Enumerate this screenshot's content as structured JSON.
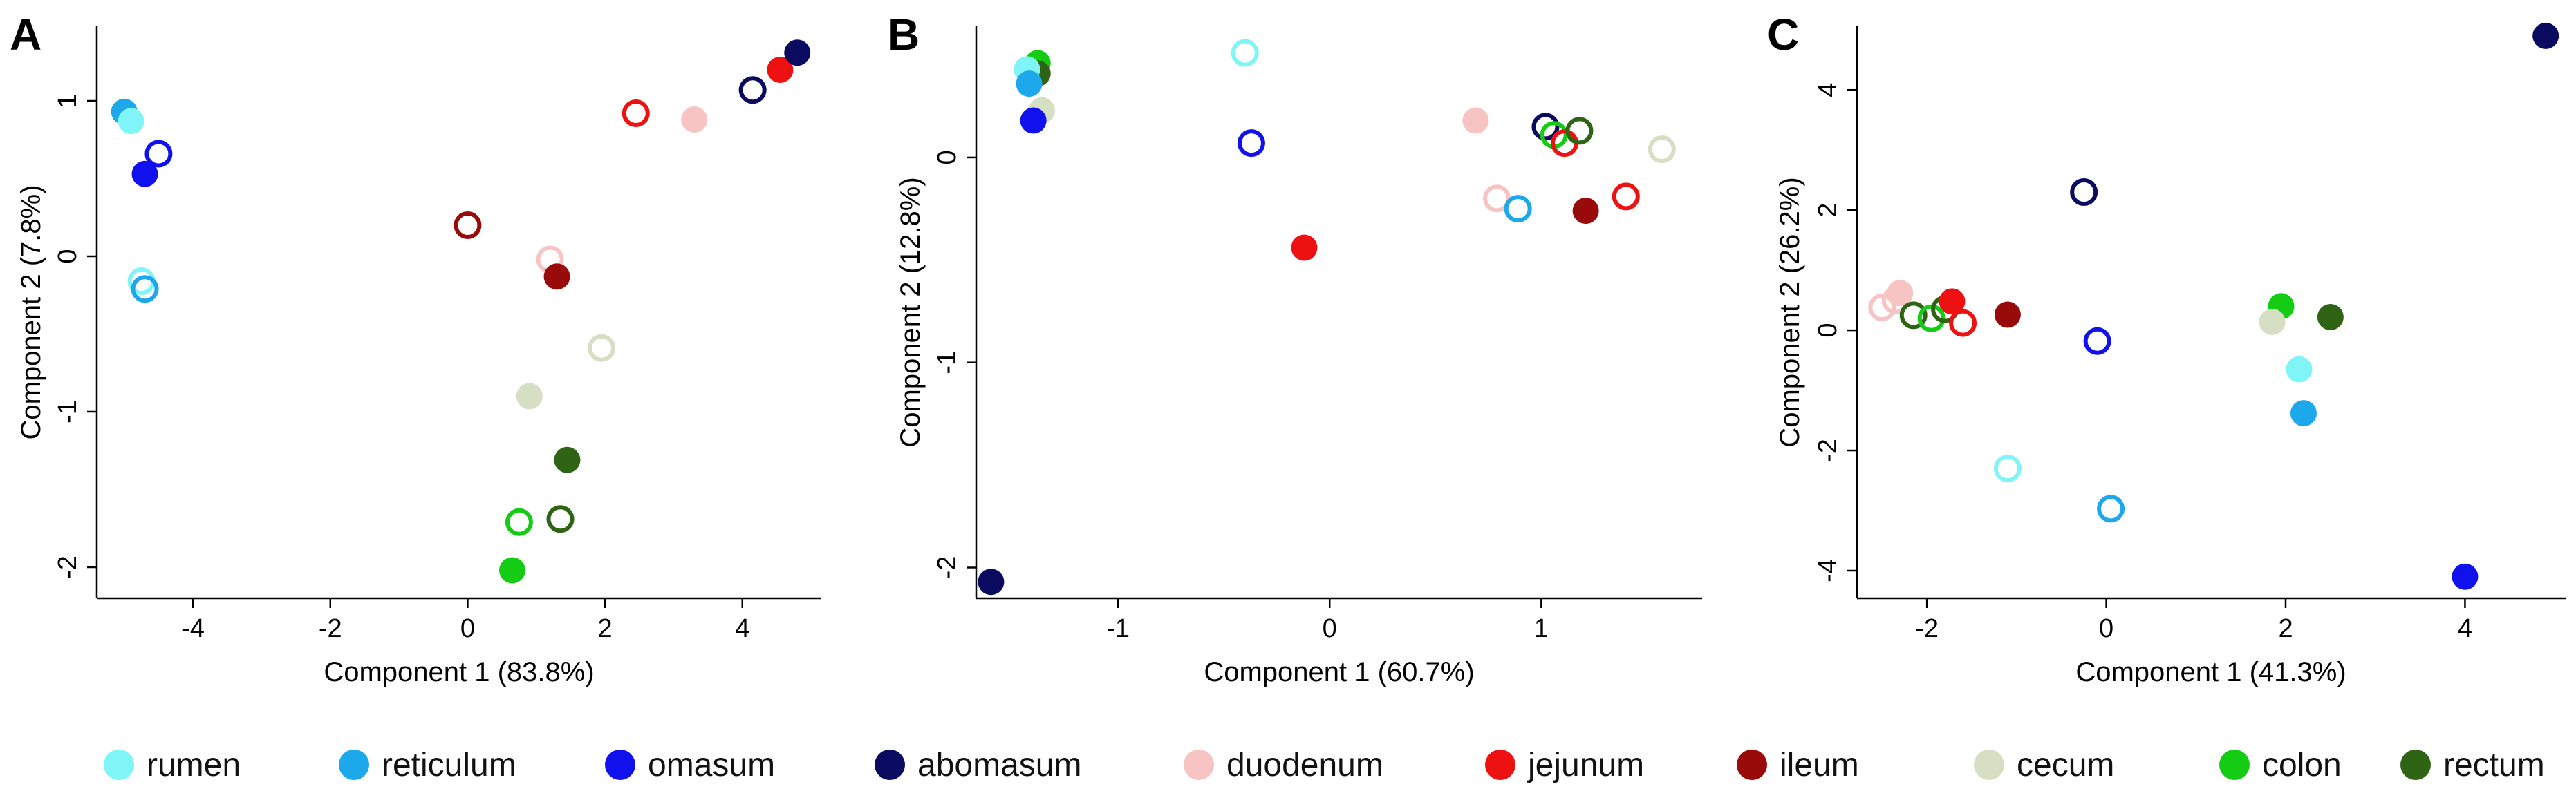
{
  "tissue_colors": {
    "rumen": "#7ff5f7",
    "reticulum": "#1ea8ec",
    "omasum": "#1111ee",
    "abomasum": "#0a0a60",
    "duodenum": "#f7c3c3",
    "jejunum": "#ee1111",
    "ileum": "#990b0b",
    "cecum": "#d6dec3",
    "colon": "#14cc14",
    "rectum": "#2e6414"
  },
  "legend": [
    {
      "key": "rumen",
      "label": "rumen"
    },
    {
      "key": "reticulum",
      "label": "reticulum"
    },
    {
      "key": "omasum",
      "label": "omasum"
    },
    {
      "key": "abomasum",
      "label": "abomasum"
    },
    {
      "key": "duodenum",
      "label": "duodenum"
    },
    {
      "key": "jejunum",
      "label": "jejunum"
    },
    {
      "key": "ileum",
      "label": "ileum"
    },
    {
      "key": "cecum",
      "label": "cecum"
    },
    {
      "key": "colon",
      "label": "colon"
    },
    {
      "key": "rectum",
      "label": "rectum"
    }
  ],
  "chart_data": [
    {
      "type": "scatter",
      "panel": "A",
      "xlabel": "Component 1 (83.8%)",
      "ylabel": "Component 2 (7.8%)",
      "xlim": [
        -5.4,
        5.15
      ],
      "ylim": [
        -2.2,
        1.48
      ],
      "xticks": [
        -4,
        -2,
        0,
        2,
        4
      ],
      "yticks": [
        -2,
        -1,
        0,
        1
      ],
      "points": [
        {
          "tissue": "reticulum",
          "filled": true,
          "x": -5.0,
          "y": 0.93
        },
        {
          "tissue": "rumen",
          "filled": true,
          "x": -4.9,
          "y": 0.87
        },
        {
          "tissue": "omasum",
          "filled": false,
          "x": -4.5,
          "y": 0.66
        },
        {
          "tissue": "omasum",
          "filled": true,
          "x": -4.7,
          "y": 0.53
        },
        {
          "tissue": "rumen",
          "filled": false,
          "x": -4.75,
          "y": -0.16
        },
        {
          "tissue": "reticulum",
          "filled": false,
          "x": -4.7,
          "y": -0.21
        },
        {
          "tissue": "ileum",
          "filled": false,
          "x": 0.0,
          "y": 0.2
        },
        {
          "tissue": "duodenum",
          "filled": false,
          "x": 1.2,
          "y": -0.02
        },
        {
          "tissue": "ileum",
          "filled": true,
          "x": 1.3,
          "y": -0.13
        },
        {
          "tissue": "cecum",
          "filled": false,
          "x": 1.95,
          "y": -0.59
        },
        {
          "tissue": "cecum",
          "filled": true,
          "x": 0.9,
          "y": -0.9
        },
        {
          "tissue": "rectum",
          "filled": true,
          "x": 1.45,
          "y": -1.31
        },
        {
          "tissue": "colon",
          "filled": false,
          "x": 0.75,
          "y": -1.71
        },
        {
          "tissue": "rectum",
          "filled": false,
          "x": 1.35,
          "y": -1.69
        },
        {
          "tissue": "colon",
          "filled": true,
          "x": 0.65,
          "y": -2.02
        },
        {
          "tissue": "jejunum",
          "filled": false,
          "x": 2.45,
          "y": 0.92
        },
        {
          "tissue": "duodenum",
          "filled": true,
          "x": 3.3,
          "y": 0.88
        },
        {
          "tissue": "abomasum",
          "filled": false,
          "x": 4.15,
          "y": 1.07
        },
        {
          "tissue": "jejunum",
          "filled": true,
          "x": 4.55,
          "y": 1.2
        },
        {
          "tissue": "abomasum",
          "filled": true,
          "x": 4.8,
          "y": 1.31
        }
      ]
    },
    {
      "type": "scatter",
      "panel": "B",
      "xlabel": "Component 1 (60.7%)",
      "ylabel": "Component 2 (12.8%)",
      "xlim": [
        -1.67,
        1.76
      ],
      "ylim": [
        -2.15,
        0.64
      ],
      "xticks": [
        -1,
        0,
        1
      ],
      "yticks": [
        -2,
        -1,
        0
      ],
      "points": [
        {
          "tissue": "colon",
          "filled": true,
          "x": -1.38,
          "y": 0.46
        },
        {
          "tissue": "rectum",
          "filled": true,
          "x": -1.38,
          "y": 0.41
        },
        {
          "tissue": "cecum",
          "filled": true,
          "x": -1.36,
          "y": 0.23
        },
        {
          "tissue": "rumen",
          "filled": true,
          "x": -1.43,
          "y": 0.43
        },
        {
          "tissue": "reticulum",
          "filled": true,
          "x": -1.42,
          "y": 0.36
        },
        {
          "tissue": "omasum",
          "filled": true,
          "x": -1.4,
          "y": 0.18
        },
        {
          "tissue": "rumen",
          "filled": false,
          "x": -0.4,
          "y": 0.51
        },
        {
          "tissue": "omasum",
          "filled": false,
          "x": -0.37,
          "y": 0.07
        },
        {
          "tissue": "jejunum",
          "filled": true,
          "x": -0.12,
          "y": -0.44
        },
        {
          "tissue": "abomasum",
          "filled": true,
          "x": -1.6,
          "y": -2.07
        },
        {
          "tissue": "duodenum",
          "filled": true,
          "x": 0.69,
          "y": 0.18
        },
        {
          "tissue": "duodenum",
          "filled": false,
          "x": 0.79,
          "y": -0.2
        },
        {
          "tissue": "reticulum",
          "filled": false,
          "x": 0.89,
          "y": -0.25
        },
        {
          "tissue": "abomasum",
          "filled": false,
          "x": 1.02,
          "y": 0.15
        },
        {
          "tissue": "colon",
          "filled": false,
          "x": 1.06,
          "y": 0.11
        },
        {
          "tissue": "jejunum",
          "filled": false,
          "x": 1.11,
          "y": 0.07
        },
        {
          "tissue": "rectum",
          "filled": false,
          "x": 1.18,
          "y": 0.13
        },
        {
          "tissue": "ileum",
          "filled": true,
          "x": 1.21,
          "y": -0.26
        },
        {
          "tissue": "jejunum",
          "filled": false,
          "x": 1.4,
          "y": -0.19
        },
        {
          "tissue": "cecum",
          "filled": false,
          "x": 1.57,
          "y": 0.04
        }
      ]
    },
    {
      "type": "scatter",
      "panel": "C",
      "xlabel": "Component 1 (41.3%)",
      "ylabel": "Component 2 (26.2%)",
      "xlim": [
        -2.78,
        5.13
      ],
      "ylim": [
        -4.46,
        5.06
      ],
      "xticks": [
        -2,
        0,
        2,
        4
      ],
      "yticks": [
        -4,
        -2,
        0,
        2,
        4
      ],
      "points": [
        {
          "tissue": "duodenum",
          "filled": false,
          "x": -2.5,
          "y": 0.38
        },
        {
          "tissue": "duodenum",
          "filled": false,
          "x": -2.35,
          "y": 0.5
        },
        {
          "tissue": "duodenum",
          "filled": true,
          "x": -2.3,
          "y": 0.62
        },
        {
          "tissue": "rectum",
          "filled": false,
          "x": -2.15,
          "y": 0.25
        },
        {
          "tissue": "colon",
          "filled": false,
          "x": -1.95,
          "y": 0.2
        },
        {
          "tissue": "rectum",
          "filled": false,
          "x": -1.8,
          "y": 0.35
        },
        {
          "tissue": "jejunum",
          "filled": true,
          "x": -1.72,
          "y": 0.48
        },
        {
          "tissue": "jejunum",
          "filled": false,
          "x": -1.6,
          "y": 0.12
        },
        {
          "tissue": "ileum",
          "filled": true,
          "x": -1.1,
          "y": 0.26
        },
        {
          "tissue": "abomasum",
          "filled": false,
          "x": -0.25,
          "y": 2.3
        },
        {
          "tissue": "omasum",
          "filled": false,
          "x": -0.1,
          "y": -0.18
        },
        {
          "tissue": "rumen",
          "filled": false,
          "x": -1.1,
          "y": -2.3
        },
        {
          "tissue": "reticulum",
          "filled": false,
          "x": 0.05,
          "y": -2.97
        },
        {
          "tissue": "colon",
          "filled": true,
          "x": 1.95,
          "y": 0.4
        },
        {
          "tissue": "cecum",
          "filled": true,
          "x": 1.85,
          "y": 0.14
        },
        {
          "tissue": "rectum",
          "filled": true,
          "x": 2.5,
          "y": 0.22
        },
        {
          "tissue": "rumen",
          "filled": true,
          "x": 2.15,
          "y": -0.65
        },
        {
          "tissue": "reticulum",
          "filled": true,
          "x": 2.2,
          "y": -1.38
        },
        {
          "tissue": "omasum",
          "filled": true,
          "x": 4.0,
          "y": -4.1
        },
        {
          "tissue": "abomasum",
          "filled": true,
          "x": 4.9,
          "y": 4.9
        }
      ]
    }
  ]
}
